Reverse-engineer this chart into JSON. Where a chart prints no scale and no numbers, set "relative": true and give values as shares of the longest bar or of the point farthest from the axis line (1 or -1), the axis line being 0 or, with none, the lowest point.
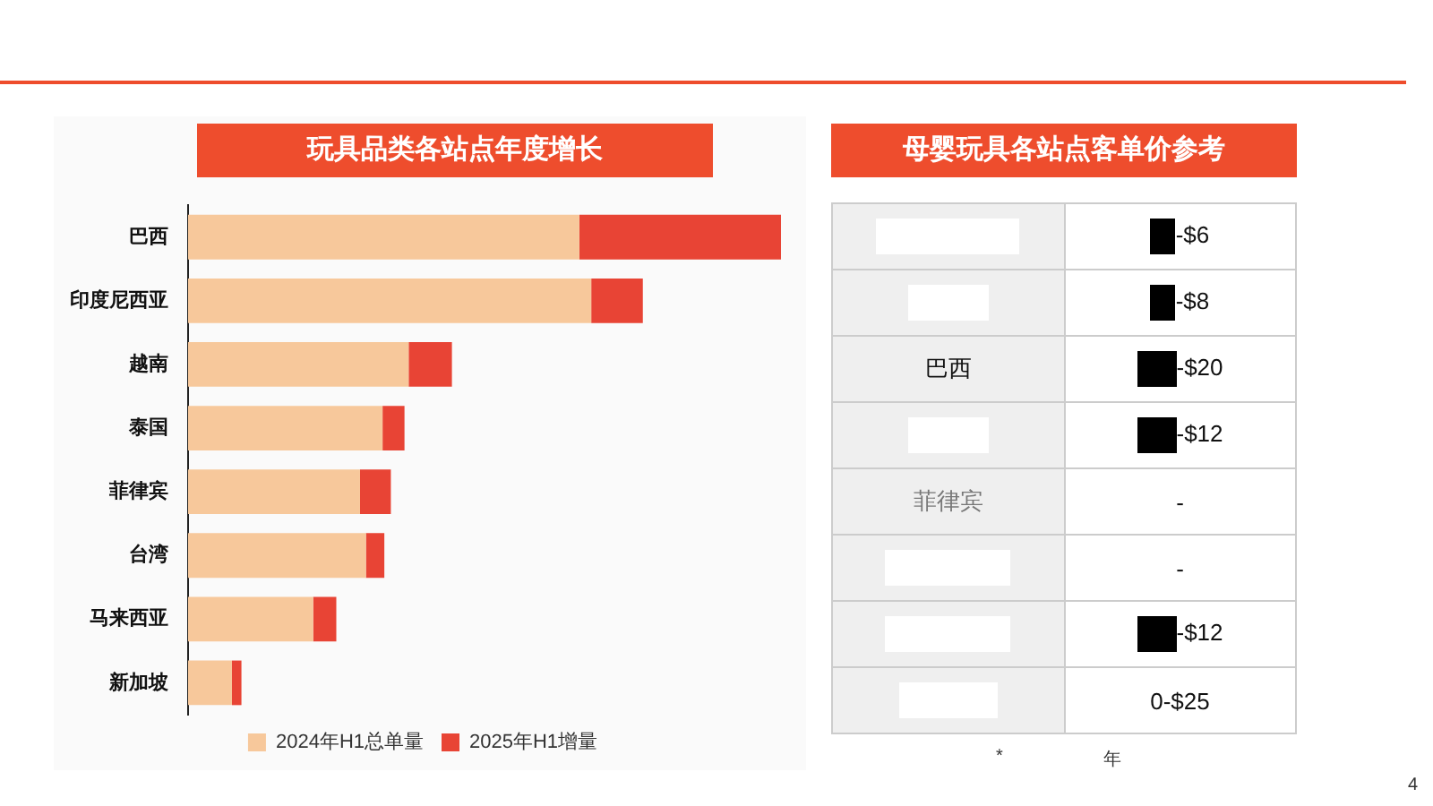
{
  "chart_data": [
    {
      "type": "bar",
      "title": "玩具品类各站点年度增长",
      "orientation": "horizontal",
      "stacked": true,
      "relative": true,
      "legend": "bottom",
      "categories": [
        "巴西",
        "印度尼西亚",
        "越南",
        "泰国",
        "菲律宾",
        "台湾",
        "马来西亚",
        "新加坡"
      ],
      "series": [
        {
          "name": "2024年H1总单量",
          "color": "#f7c89b",
          "values": [
            0.66,
            0.68,
            0.372,
            0.328,
            0.29,
            0.3,
            0.211,
            0.074
          ]
        },
        {
          "name": "2025年H1增量",
          "color": "#e84435",
          "values": [
            0.34,
            0.087,
            0.073,
            0.037,
            0.052,
            0.031,
            0.039,
            0.016
          ]
        }
      ]
    },
    {
      "type": "other",
      "title": "母婴玩具各站点客单价参考",
      "annotations": [
        "-$6",
        "-$8",
        "巴西",
        "-$20",
        "-$12",
        "菲律宾",
        "-",
        "-",
        "-$12",
        "0-$25",
        "*",
        "年",
        "4"
      ]
    }
  ]
}
